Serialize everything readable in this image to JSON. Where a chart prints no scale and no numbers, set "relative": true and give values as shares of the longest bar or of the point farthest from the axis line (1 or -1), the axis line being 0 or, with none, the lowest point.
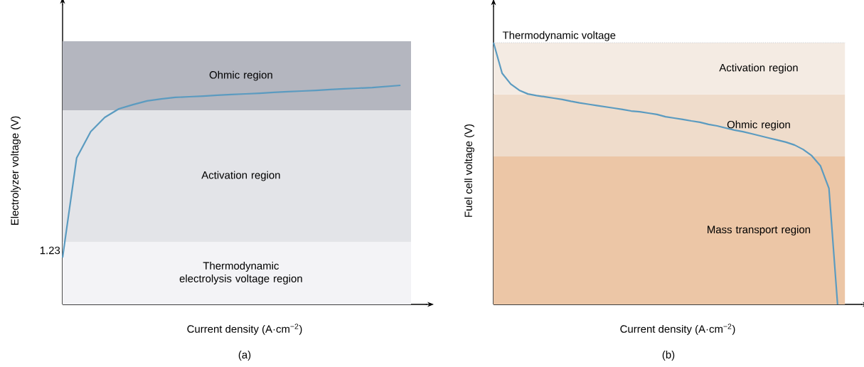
{
  "chart_data": [
    {
      "type": "line",
      "relative": true,
      "xlabel": "Current density (A·cm$^{−2}$)",
      "ylabel": "Electrolyzer voltage (V)",
      "annotations": [
        "(a)",
        "1.23"
      ],
      "categories": [
        null,
        null,
        null,
        null,
        null,
        null,
        null,
        null,
        null,
        null,
        null,
        null,
        null,
        null,
        null,
        null,
        null,
        null,
        null,
        null,
        null,
        null,
        null,
        null,
        null
      ],
      "series": [
        {
          "color": "#5b9bc0",
          "values": [
            0.214,
            0.669,
            0.789,
            0.854,
            0.893,
            0.912,
            0.929,
            0.938,
            0.945,
            0.948,
            0.951,
            0.955,
            0.958,
            0.961,
            0.964,
            0.968,
            0.971,
            0.974,
            0.977,
            0.981,
            0.984,
            0.987,
            0.99,
            0.995,
            1
          ]
        }
      ],
      "bands": [
        {
          "axis": "y",
          "from": 0,
          "to": 0.286,
          "label": "Thermodynamic electrolysis voltage region",
          "color": "#f3f3f6"
        },
        {
          "axis": "y",
          "from": 0.286,
          "to": 0.886,
          "label": "Activation region",
          "color": "#e3e4e8"
        },
        {
          "axis": "y",
          "from": 0.886,
          "to": 1.201,
          "label": "Ohmic region",
          "color": "#b4b6bf"
        }
      ]
    },
    {
      "type": "line",
      "relative": true,
      "xlabel": "Current density (A·cm$^{−2}$)",
      "ylabel": "Fuel cell voltage (V)",
      "annotations": [
        "(b)"
      ],
      "categories": [
        null,
        null,
        null,
        null,
        null,
        null,
        null,
        null,
        null,
        null,
        null,
        null,
        null,
        null,
        null,
        null,
        null,
        null,
        null,
        null,
        null,
        null,
        null,
        null,
        null,
        null,
        null,
        null,
        null,
        null,
        null,
        null,
        null,
        null,
        null,
        null,
        null,
        null,
        null,
        null,
        null
      ],
      "series": [
        {
          "color": "#5b9bc0",
          "values": [
            1,
            0.883,
            0.842,
            0.818,
            0.804,
            0.798,
            0.793,
            0.788,
            0.783,
            0.776,
            0.77,
            0.765,
            0.76,
            0.755,
            0.75,
            0.745,
            0.739,
            0.736,
            0.731,
            0.726,
            0.717,
            0.712,
            0.707,
            0.701,
            0.696,
            0.688,
            0.682,
            0.674,
            0.666,
            0.66,
            0.652,
            0.644,
            0.636,
            0.628,
            0.62,
            0.609,
            0.592,
            0.568,
            0.53,
            0.443,
            0
          ]
        }
      ],
      "bands": [
        {
          "axis": "y",
          "from": 0,
          "to": 0.565,
          "label": "Mass transport region",
          "color": "#ecc6a6"
        },
        {
          "axis": "y",
          "from": 0.565,
          "to": 0.802,
          "label": "Ohmic region",
          "color": "#efdccb"
        },
        {
          "axis": "y",
          "from": 0.802,
          "to": 1,
          "label": "Activation region",
          "color": "#f4ebe3"
        }
      ],
      "ref_lines": [
        {
          "axis": "y",
          "value": 1,
          "label": "Thermodynamic voltage",
          "line_style": "dotted",
          "color": "#a8b4c8"
        }
      ]
    }
  ]
}
